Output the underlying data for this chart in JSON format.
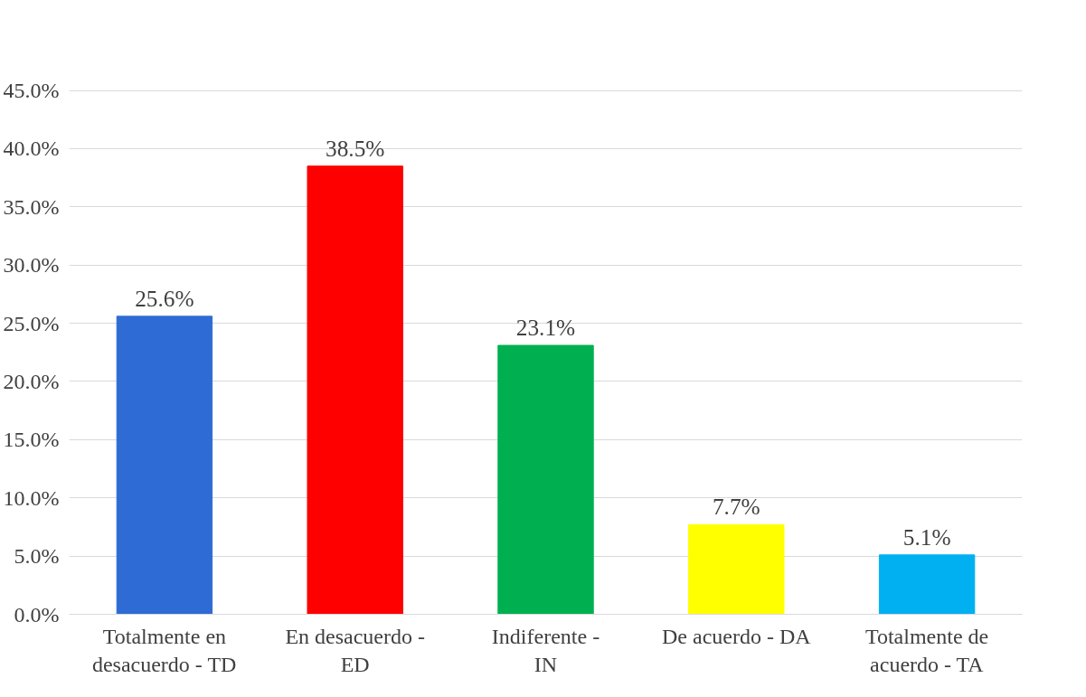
{
  "chart_data": {
    "type": "bar",
    "categories": [
      "Totalmente en desacuerdo - TD",
      "En desacuerdo - ED",
      "Indiferente - IN",
      "De acuerdo - DA",
      "Totalmente de acuerdo - TA"
    ],
    "values": [
      25.6,
      38.5,
      23.1,
      7.7,
      5.1
    ],
    "value_labels": [
      "25.6%",
      "38.5%",
      "23.1%",
      "7.7%",
      "5.1%"
    ],
    "colors": [
      "#2e6bd4",
      "#ff0000",
      "#00b050",
      "#ffff00",
      "#00b0f0"
    ],
    "ylim": [
      0,
      45
    ],
    "yticks": [
      {
        "value": 0,
        "label": "0.0%"
      },
      {
        "value": 5,
        "label": "5.0%"
      },
      {
        "value": 10,
        "label": "10.0%"
      },
      {
        "value": 15,
        "label": "15.0%"
      },
      {
        "value": 20,
        "label": "20.0%"
      },
      {
        "value": 25,
        "label": "25.0%"
      },
      {
        "value": 30,
        "label": "30.0%"
      },
      {
        "value": 35,
        "label": "35.0%"
      },
      {
        "value": 40,
        "label": "40.0%"
      },
      {
        "value": 45,
        "label": "45.0%"
      }
    ],
    "grid": "y"
  }
}
